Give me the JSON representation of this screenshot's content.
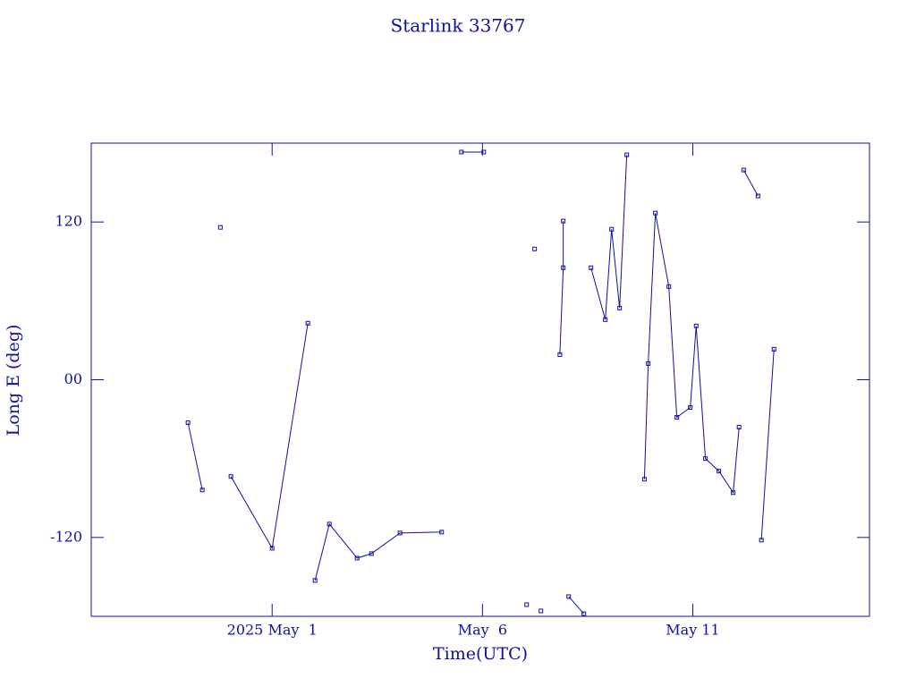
{
  "chart_data": {
    "type": "line",
    "title": "Starlink 33767",
    "xlabel": "Time(UTC)",
    "ylabel": "Long E (deg)",
    "color": "#1010a0",
    "xlim": [
      -3.3,
      15.2
    ],
    "xticks": [
      {
        "value": 1,
        "label": "2025 May  1"
      },
      {
        "value": 6,
        "label": "May  6"
      },
      {
        "value": 11,
        "label": "May 11"
      }
    ],
    "ylim": [
      -180,
      180
    ],
    "yticks": [
      {
        "value": -120,
        "label": "-120"
      },
      {
        "value": 0,
        "label": "00"
      },
      {
        "value": 120,
        "label": "120"
      }
    ],
    "x": [
      -1.0,
      -0.66,
      null,
      -0.23,
      null,
      0.02,
      1.0,
      1.85,
      null,
      2.02,
      2.36,
      3.02,
      3.36,
      4.04,
      5.03,
      null,
      5.5,
      6.03,
      null,
      7.05,
      null,
      7.24,
      null,
      7.39,
      null,
      7.84,
      7.92,
      7.92,
      null,
      8.05,
      8.41,
      null,
      8.58,
      8.92,
      9.07,
      9.26,
      9.43,
      null,
      9.85,
      9.94,
      10.11,
      10.43,
      10.62,
      10.94,
      11.08,
      11.3,
      11.62,
      11.96,
      12.1,
      null,
      12.21,
      12.55,
      null,
      12.63,
      12.93
    ],
    "values": [
      -32.7,
      -83.9,
      null,
      115.9,
      null,
      -73.6,
      -128.2,
      43.0,
      null,
      -152.7,
      -109.8,
      -135.7,
      -132.3,
      -116.6,
      -115.9,
      null,
      173.2,
      173.2,
      null,
      -171.1,
      null,
      99.5,
      null,
      -175.9,
      null,
      19.1,
      85.2,
      120.7,
      null,
      -165.0,
      -178.0,
      null,
      85.2,
      45.7,
      114.5,
      54.5,
      171.1,
      null,
      -75.7,
      12.3,
      126.8,
      70.9,
      -28.6,
      -21.1,
      40.9,
      -60.0,
      -69.5,
      -85.9,
      -36.1,
      null,
      159.5,
      139.8,
      null,
      -122.0,
      23.2
    ]
  }
}
